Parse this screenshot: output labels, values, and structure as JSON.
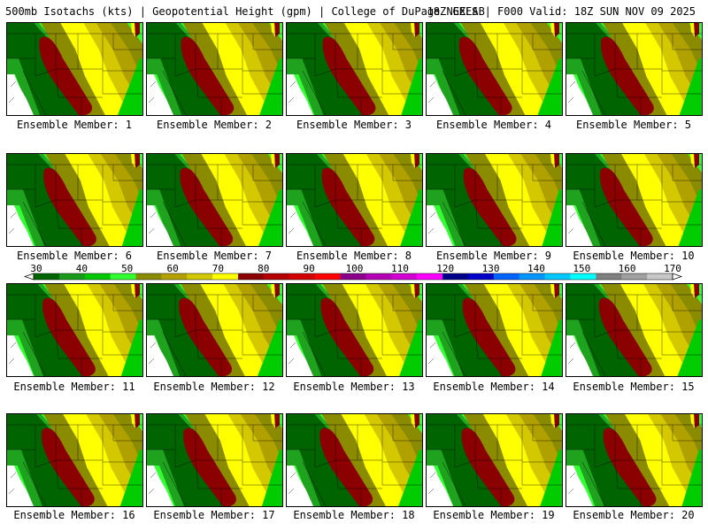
{
  "header": {
    "left": "500mb Isotachs (kts) | Geopotential Height (gpm) | College of DuPage NEXLAB",
    "right": "18Z GEFS | F000 Valid: 18Z SUN NOV 09 2025"
  },
  "panel_label_prefix": "Ensemble Member: ",
  "members": [
    "1",
    "2",
    "3",
    "4",
    "5",
    "6",
    "7",
    "8",
    "9",
    "10",
    "11",
    "12",
    "13",
    "14",
    "15",
    "16",
    "17",
    "18",
    "19",
    "20"
  ],
  "colorbar": {
    "tick_labels": [
      "30",
      "40",
      "50",
      "60",
      "70",
      "80",
      "90",
      "100",
      "110",
      "120",
      "130",
      "140",
      "150",
      "160",
      "170"
    ],
    "colors": [
      "#006400",
      "#1a9a1a",
      "#00c800",
      "#32ff32",
      "#8b8b00",
      "#b4a000",
      "#d2c800",
      "#ffff00",
      "#8b0000",
      "#b40000",
      "#d20000",
      "#ff0000",
      "#8b008b",
      "#b400b4",
      "#d200d2",
      "#ff00ff",
      "#00008b",
      "#0000c8",
      "#0064ff",
      "#0096ff",
      "#00c8ff",
      "#00ffff",
      "#808080",
      "#a0a0a0",
      "#c8c8c8"
    ],
    "units": "kts"
  },
  "isotach_colors": {
    "30": "#006400",
    "40": "#22aa22",
    "45": "#00cc00",
    "50": "#33ff33",
    "55": "#8b8b00",
    "60": "#b0a000",
    "65": "#d4c800",
    "70": "#ffff00",
    "80": "#8b0000"
  },
  "icons": {
    "map": "us-west-map-icon",
    "colorbar_ends": "triangle-arrow-icon"
  }
}
